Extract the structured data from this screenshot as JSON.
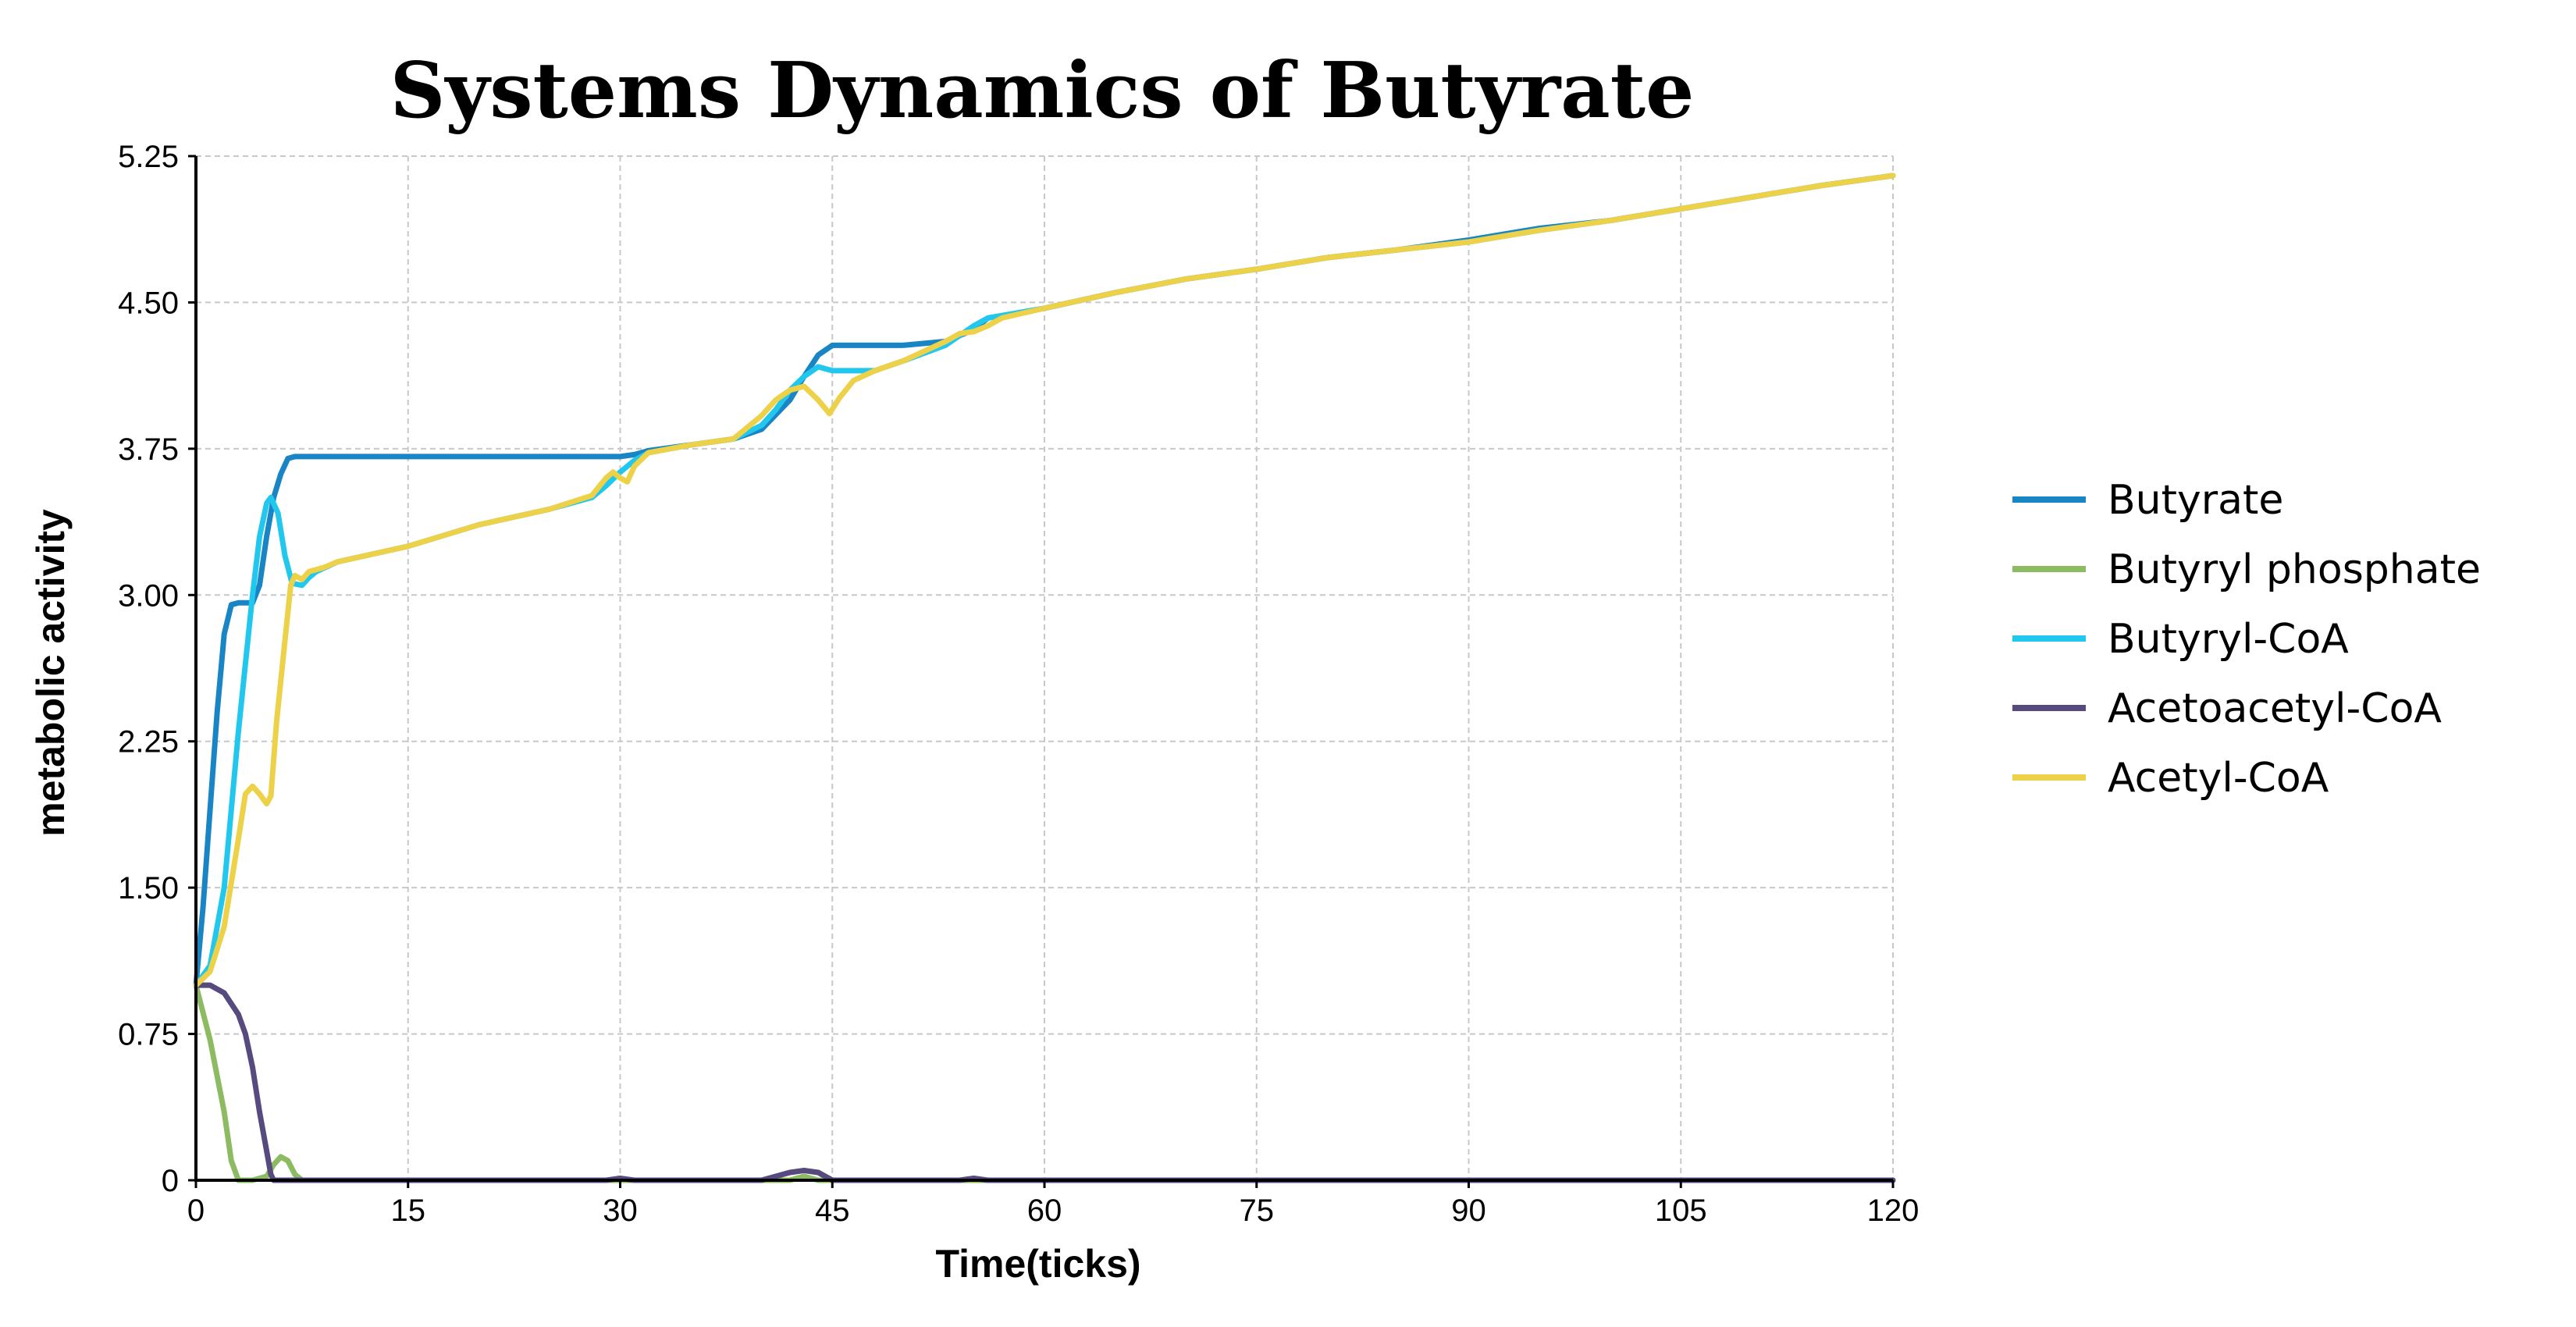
{
  "chart_data": {
    "type": "line",
    "title": "Systems Dynamics of Butyrate",
    "xlabel": "Time(ticks)",
    "ylabel": "metabolic activity",
    "xlim": [
      0,
      120
    ],
    "ylim": [
      0,
      5.25
    ],
    "x_ticks": [
      "0",
      "15",
      "30",
      "45",
      "60",
      "75",
      "90",
      "105",
      "120"
    ],
    "x_tick_values": [
      0,
      15,
      30,
      45,
      60,
      75,
      90,
      105,
      120
    ],
    "y_ticks": [
      "0",
      "0.75",
      "1.50",
      "2.25",
      "3.00",
      "3.75",
      "4.50",
      "5.25"
    ],
    "y_tick_values": [
      0,
      0.75,
      1.5,
      2.25,
      3.0,
      3.75,
      4.5,
      5.25
    ],
    "grid": true,
    "legend_position": "right",
    "series": [
      {
        "name": "Butyrate",
        "color": "#1a85c4",
        "points": [
          [
            0,
            1.0
          ],
          [
            0.5,
            1.4
          ],
          [
            1,
            1.9
          ],
          [
            1.5,
            2.4
          ],
          [
            2,
            2.8
          ],
          [
            2.5,
            2.95
          ],
          [
            3,
            2.96
          ],
          [
            4,
            2.96
          ],
          [
            4.5,
            3.05
          ],
          [
            5,
            3.3
          ],
          [
            5.5,
            3.5
          ],
          [
            6,
            3.62
          ],
          [
            6.5,
            3.7
          ],
          [
            7,
            3.71
          ],
          [
            15,
            3.71
          ],
          [
            25,
            3.71
          ],
          [
            30,
            3.71
          ],
          [
            31,
            3.72
          ],
          [
            32,
            3.74
          ],
          [
            35,
            3.77
          ],
          [
            38,
            3.8
          ],
          [
            40,
            3.85
          ],
          [
            42,
            4.0
          ],
          [
            43,
            4.12
          ],
          [
            44,
            4.23
          ],
          [
            45,
            4.28
          ],
          [
            50,
            4.28
          ],
          [
            53,
            4.3
          ],
          [
            55,
            4.36
          ],
          [
            56,
            4.42
          ],
          [
            60,
            4.47
          ],
          [
            65,
            4.55
          ],
          [
            70,
            4.62
          ],
          [
            75,
            4.67
          ],
          [
            80,
            4.73
          ],
          [
            85,
            4.77
          ],
          [
            90,
            4.82
          ],
          [
            95,
            4.88
          ],
          [
            100,
            4.92
          ],
          [
            105,
            4.98
          ],
          [
            110,
            5.04
          ],
          [
            115,
            5.1
          ],
          [
            120,
            5.15
          ]
        ]
      },
      {
        "name": "Butyryl phosphate",
        "color": "#8dbb62",
        "points": [
          [
            0,
            1.0
          ],
          [
            1,
            0.72
          ],
          [
            2,
            0.35
          ],
          [
            2.5,
            0.1
          ],
          [
            3,
            0.0
          ],
          [
            4,
            0.0
          ],
          [
            5,
            0.02
          ],
          [
            5.5,
            0.08
          ],
          [
            6,
            0.12
          ],
          [
            6.5,
            0.1
          ],
          [
            7,
            0.03
          ],
          [
            7.5,
            0.0
          ],
          [
            10,
            0.0
          ],
          [
            30,
            0.0
          ],
          [
            42,
            0.0
          ],
          [
            43,
            0.02
          ],
          [
            44,
            0.0
          ],
          [
            60,
            0.0
          ],
          [
            120,
            0.0
          ]
        ]
      },
      {
        "name": "Butyryl-CoA",
        "color": "#22c7ee",
        "points": [
          [
            0,
            1.0
          ],
          [
            1,
            1.1
          ],
          [
            2,
            1.5
          ],
          [
            3,
            2.3
          ],
          [
            4,
            3.0
          ],
          [
            4.5,
            3.3
          ],
          [
            5,
            3.47
          ],
          [
            5.3,
            3.5
          ],
          [
            5.8,
            3.42
          ],
          [
            6.3,
            3.2
          ],
          [
            6.8,
            3.06
          ],
          [
            7.5,
            3.05
          ],
          [
            8,
            3.09
          ],
          [
            8.5,
            3.12
          ],
          [
            10,
            3.17
          ],
          [
            15,
            3.25
          ],
          [
            20,
            3.36
          ],
          [
            25,
            3.44
          ],
          [
            28,
            3.5
          ],
          [
            29,
            3.56
          ],
          [
            30,
            3.63
          ],
          [
            31,
            3.69
          ],
          [
            32,
            3.73
          ],
          [
            35,
            3.77
          ],
          [
            38,
            3.8
          ],
          [
            40,
            3.87
          ],
          [
            41,
            3.95
          ],
          [
            42,
            4.05
          ],
          [
            43,
            4.12
          ],
          [
            44,
            4.17
          ],
          [
            45,
            4.15
          ],
          [
            48,
            4.15
          ],
          [
            50,
            4.2
          ],
          [
            53,
            4.28
          ],
          [
            55,
            4.38
          ],
          [
            56,
            4.42
          ],
          [
            60,
            4.47
          ],
          [
            65,
            4.55
          ],
          [
            70,
            4.62
          ],
          [
            75,
            4.67
          ],
          [
            80,
            4.73
          ],
          [
            85,
            4.77
          ],
          [
            90,
            4.81
          ],
          [
            95,
            4.87
          ],
          [
            100,
            4.92
          ],
          [
            105,
            4.98
          ],
          [
            110,
            5.04
          ],
          [
            115,
            5.1
          ],
          [
            120,
            5.15
          ]
        ]
      },
      {
        "name": "Acetoacetyl-CoA",
        "color": "#574a7e",
        "points": [
          [
            0,
            1.0
          ],
          [
            1,
            1.0
          ],
          [
            2,
            0.96
          ],
          [
            3,
            0.85
          ],
          [
            3.5,
            0.75
          ],
          [
            4,
            0.58
          ],
          [
            4.5,
            0.35
          ],
          [
            5,
            0.15
          ],
          [
            5.3,
            0.03
          ],
          [
            5.5,
            0.0
          ],
          [
            8,
            0.0
          ],
          [
            29,
            0.0
          ],
          [
            30,
            0.01
          ],
          [
            31,
            0.0
          ],
          [
            40,
            0.0
          ],
          [
            41,
            0.02
          ],
          [
            42,
            0.04
          ],
          [
            43,
            0.05
          ],
          [
            44,
            0.04
          ],
          [
            45,
            0.0
          ],
          [
            54,
            0.0
          ],
          [
            55,
            0.01
          ],
          [
            56,
            0.0
          ],
          [
            120,
            0.0
          ]
        ]
      },
      {
        "name": "Acetyl-CoA",
        "color": "#ecd149",
        "points": [
          [
            0,
            1.0
          ],
          [
            1,
            1.07
          ],
          [
            2,
            1.3
          ],
          [
            3,
            1.75
          ],
          [
            3.5,
            1.98
          ],
          [
            4,
            2.02
          ],
          [
            4.5,
            1.98
          ],
          [
            5,
            1.93
          ],
          [
            5.3,
            1.97
          ],
          [
            5.7,
            2.35
          ],
          [
            6.2,
            2.7
          ],
          [
            6.7,
            3.05
          ],
          [
            7,
            3.1
          ],
          [
            7.5,
            3.08
          ],
          [
            8,
            3.12
          ],
          [
            9,
            3.14
          ],
          [
            10,
            3.17
          ],
          [
            15,
            3.25
          ],
          [
            20,
            3.36
          ],
          [
            25,
            3.44
          ],
          [
            28,
            3.51
          ],
          [
            29,
            3.6
          ],
          [
            29.5,
            3.63
          ],
          [
            30,
            3.6
          ],
          [
            30.5,
            3.58
          ],
          [
            31,
            3.66
          ],
          [
            32,
            3.73
          ],
          [
            35,
            3.77
          ],
          [
            38,
            3.8
          ],
          [
            40,
            3.92
          ],
          [
            41,
            4.0
          ],
          [
            42,
            4.05
          ],
          [
            43,
            4.07
          ],
          [
            44,
            4.0
          ],
          [
            44.8,
            3.93
          ],
          [
            45.5,
            4.01
          ],
          [
            46.5,
            4.1
          ],
          [
            48,
            4.15
          ],
          [
            50,
            4.2
          ],
          [
            53,
            4.3
          ],
          [
            54,
            4.34
          ],
          [
            55,
            4.35
          ],
          [
            56,
            4.38
          ],
          [
            57,
            4.42
          ],
          [
            60,
            4.47
          ],
          [
            65,
            4.55
          ],
          [
            70,
            4.62
          ],
          [
            75,
            4.67
          ],
          [
            80,
            4.73
          ],
          [
            85,
            4.77
          ],
          [
            90,
            4.81
          ],
          [
            95,
            4.87
          ],
          [
            100,
            4.92
          ],
          [
            105,
            4.98
          ],
          [
            110,
            5.04
          ],
          [
            115,
            5.1
          ],
          [
            120,
            5.15
          ]
        ]
      }
    ]
  }
}
